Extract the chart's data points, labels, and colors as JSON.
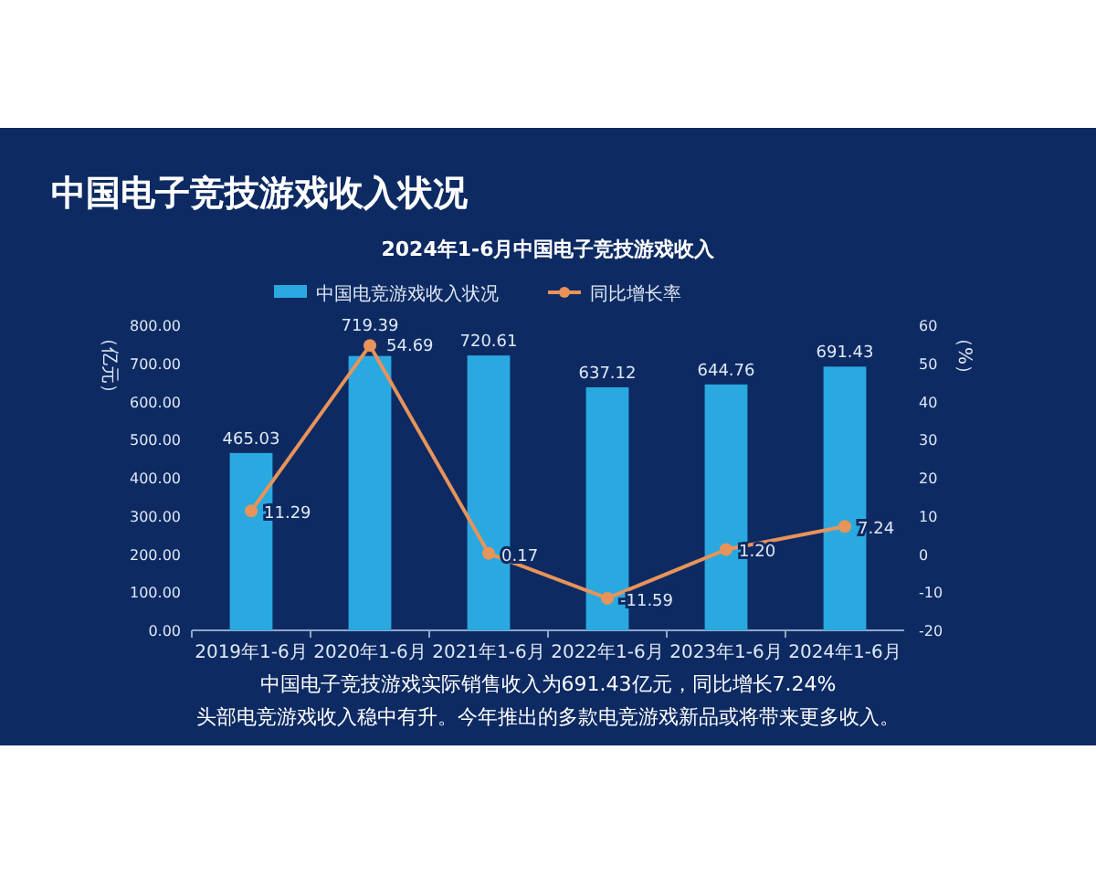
{
  "chart_data": {
    "type": "bar",
    "title": "中国电子竞技游戏收入状况",
    "subtitle": "2024年1-6月中国电子竞技游戏收入",
    "ylabel": "（亿元）",
    "y2label": "（%）",
    "categories": [
      "2019年1-6月",
      "2020年1-6月",
      "2021年1-6月",
      "2022年1-6月",
      "2023年1-6月",
      "2024年1-6月"
    ],
    "series": [
      {
        "name": "中国电竞游戏收入状况",
        "color": "#2aa9e0",
        "values": [
          465.03,
          719.39,
          720.61,
          637.12,
          644.76,
          691.43
        ],
        "value_labels": [
          "465.03",
          "719.39",
          "720.61",
          "637.12",
          "644.76",
          "691.43"
        ]
      },
      {
        "name": "同比增长率",
        "type": "line",
        "axis": "y2",
        "color": "#e8935a",
        "marker": "circle",
        "values": [
          11.29,
          54.69,
          0.17,
          -11.59,
          1.2,
          7.24
        ],
        "value_labels": [
          "11.29",
          "54.69",
          "0.17",
          "-11.59",
          "1.20",
          "7.24"
        ]
      }
    ],
    "ylim": [
      0,
      800
    ],
    "yticks": [
      {
        "value": 0,
        "label": "0.00"
      },
      {
        "value": 100,
        "label": "100.00"
      },
      {
        "value": 200,
        "label": "200.00"
      },
      {
        "value": 300,
        "label": "300.00"
      },
      {
        "value": 400,
        "label": "400.00"
      },
      {
        "value": 500,
        "label": "500.00"
      },
      {
        "value": 600,
        "label": "600.00"
      },
      {
        "value": 700,
        "label": "700.00"
      },
      {
        "value": 800,
        "label": "800.00"
      }
    ],
    "y2lim": [
      -20,
      60
    ],
    "y2ticks": [
      -20,
      -10,
      0,
      10,
      20,
      30,
      40,
      50,
      60
    ],
    "legend": "top",
    "grid": false,
    "annotations": [
      "中国电子竞技游戏实际销售收入为691.43亿元，同比增长7.24%",
      "头部电竞游戏收入稳中有升。今年推出的多款电竞游戏新品或将带来更多收入。"
    ]
  }
}
